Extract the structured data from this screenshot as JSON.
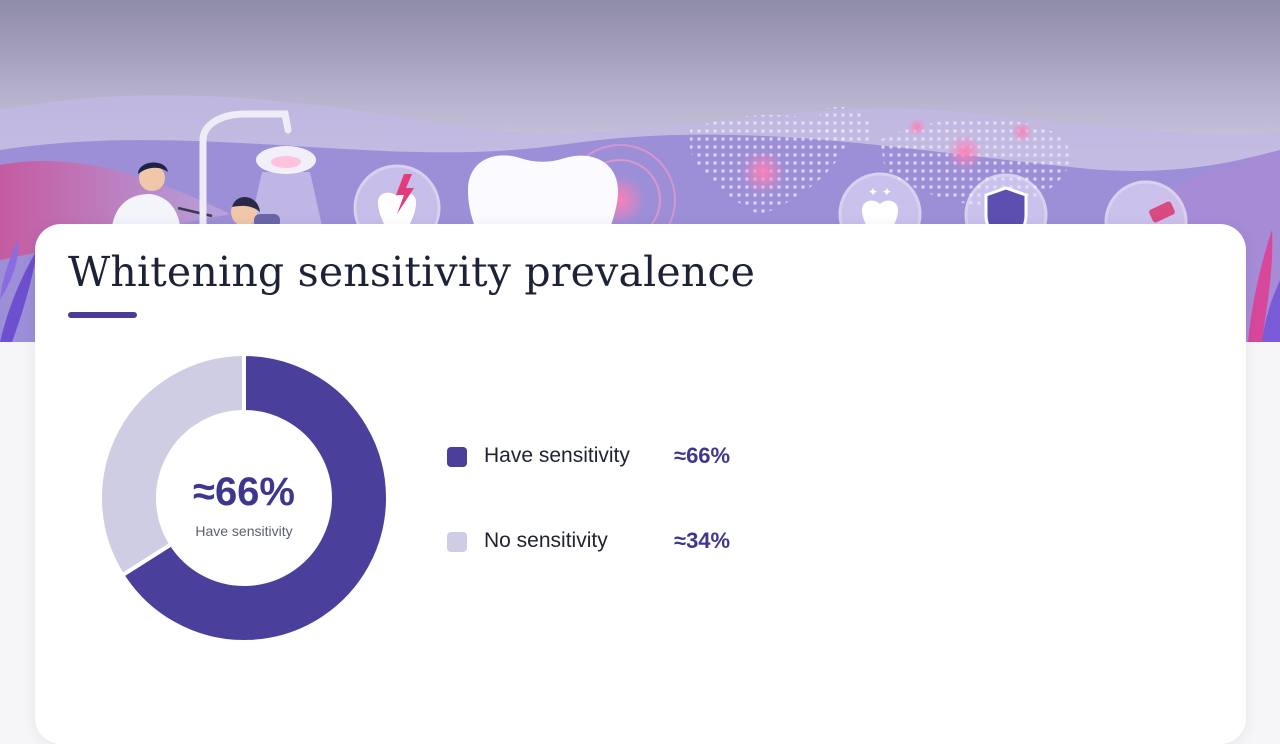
{
  "page": {
    "title": "Whitening sensitivity prevalence"
  },
  "colors": {
    "accent": "#4a3d98",
    "primary_slice": "#4a3f9b",
    "secondary_slice": "#cfcde3",
    "value_text": "#3e3790"
  },
  "banner": {
    "icons": [
      "dentist-icon",
      "patient-icon",
      "dental-lamp-icon",
      "sensitive-tooth-icon",
      "large-tooth-icon",
      "world-map-icon",
      "sparkling-tooth-icon",
      "shield-icon",
      "toothbrush-icon",
      "leaf-icon"
    ]
  },
  "chart_data": {
    "type": "pie",
    "variant": "donut",
    "title": "Whitening sensitivity prevalence",
    "center_value": "≈66%",
    "center_label": "Have sensitivity",
    "slices": [
      {
        "label": "Have sensitivity",
        "value": 66,
        "display": "≈66%",
        "color": "#4a3f9b"
      },
      {
        "label": "No sensitivity",
        "value": 34,
        "display": "≈34%",
        "color": "#cfcde3"
      }
    ],
    "legend_position": "right"
  }
}
